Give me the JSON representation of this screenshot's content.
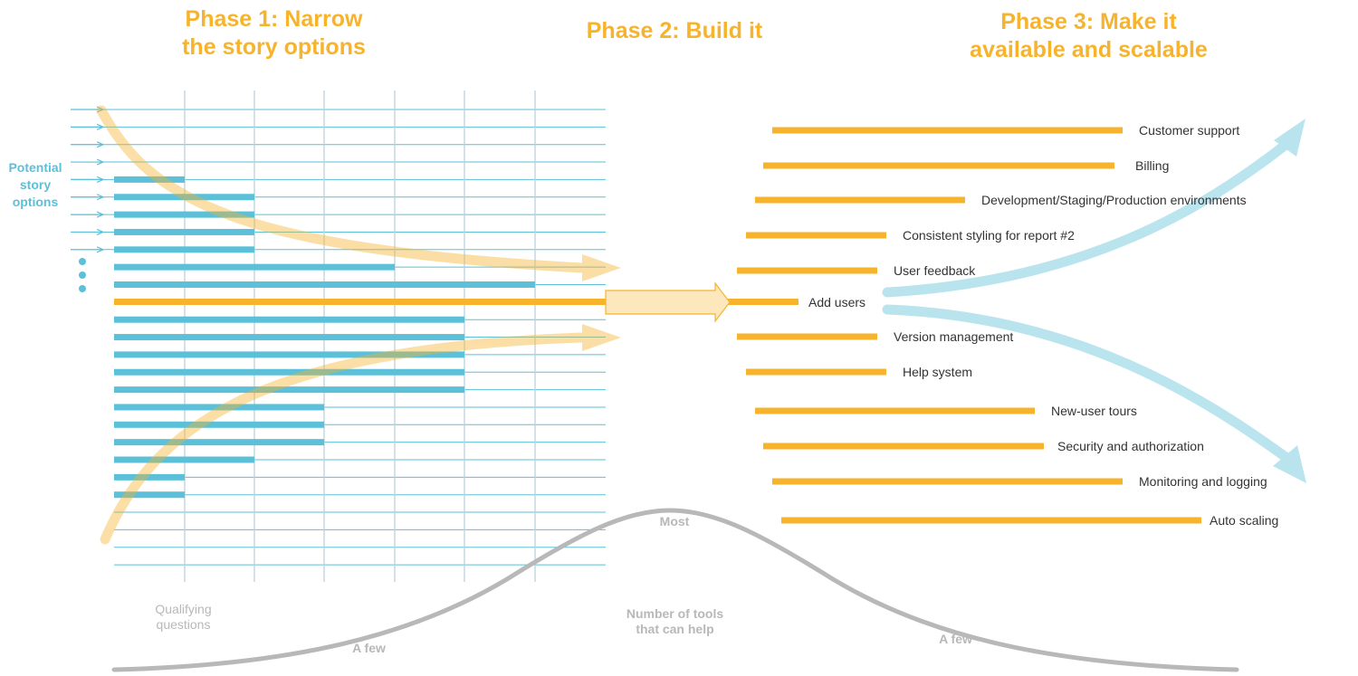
{
  "phases": {
    "phase1": [
      "Phase 1: Narrow",
      "the story options"
    ],
    "phase2": [
      "Phase 2: Build it"
    ],
    "phase3": [
      "Phase 3: Make it",
      "available and scalable"
    ]
  },
  "side_label": [
    "Potential",
    "story",
    "options"
  ],
  "colors": {
    "orange": "#f7b32b",
    "blue": "#5bc0d8",
    "gray": "#b8b8b8",
    "text": "#333333"
  },
  "tasks": [
    {
      "label": "Customer support"
    },
    {
      "label": "Billing"
    },
    {
      "label": "Development/Staging/Production environments"
    },
    {
      "label": "Consistent styling for report #2"
    },
    {
      "label": "User feedback"
    },
    {
      "label": "Add users"
    },
    {
      "label": "Version management"
    },
    {
      "label": "Help system"
    },
    {
      "label": "New-user tours"
    },
    {
      "label": "Security and authorization"
    },
    {
      "label": "Monitoring and logging"
    },
    {
      "label": "Auto scaling"
    }
  ],
  "bottom_labels": {
    "qualifying": [
      "Qualifying",
      "questions"
    ],
    "few_left": "A few",
    "most": "Most",
    "tools": [
      "Number of tools",
      "that can help"
    ],
    "few_right": "A few"
  }
}
